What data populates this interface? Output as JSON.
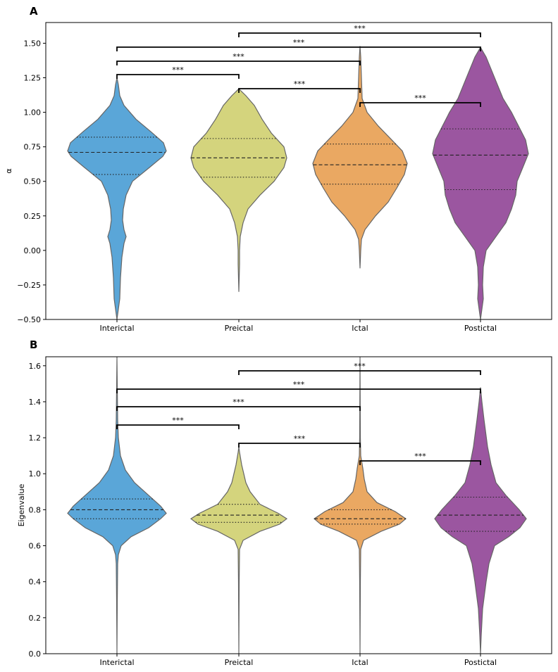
{
  "panels": [
    {
      "letter": "A",
      "ylabel": "α",
      "ylim": [
        -0.5,
        1.65
      ],
      "yticks": [
        "−0.50",
        "−0.25",
        "0.00",
        "0.25",
        "0.50",
        "0.75",
        "1.00",
        "1.25",
        "1.50"
      ],
      "ytick_values": [
        -0.5,
        -0.25,
        0.0,
        0.25,
        0.5,
        0.75,
        1.0,
        1.25,
        1.5
      ],
      "categories": [
        "Interictal",
        "Preictal",
        "Ictal",
        "Postictal"
      ],
      "brackets": [
        {
          "from": "Interictal",
          "to": "Preictal",
          "label": "***"
        },
        {
          "from": "Preictal",
          "to": "Ictal",
          "label": "***"
        },
        {
          "from": "Ictal",
          "to": "Postictal",
          "label": "***"
        },
        {
          "from": "Interictal",
          "to": "Ictal",
          "label": "***"
        },
        {
          "from": "Interictal",
          "to": "Postictal",
          "label": "***"
        },
        {
          "from": "Preictal",
          "to": "Postictal",
          "label": "***"
        }
      ]
    },
    {
      "letter": "B",
      "ylabel": "Eigenvalue",
      "ylim": [
        0.0,
        1.65
      ],
      "yticks": [
        "0.0",
        "0.2",
        "0.4",
        "0.6",
        "0.8",
        "1.0",
        "1.2",
        "1.4",
        "1.6"
      ],
      "ytick_values": [
        0.0,
        0.2,
        0.4,
        0.6,
        0.8,
        1.0,
        1.2,
        1.4,
        1.6
      ],
      "categories": [
        "Interictal",
        "Preictal",
        "Ictal",
        "Postictal"
      ],
      "brackets": [
        {
          "from": "Interictal",
          "to": "Preictal",
          "label": "***"
        },
        {
          "from": "Preictal",
          "to": "Ictal",
          "label": "***"
        },
        {
          "from": "Ictal",
          "to": "Postictal",
          "label": "***"
        },
        {
          "from": "Interictal",
          "to": "Ictal",
          "label": "***"
        },
        {
          "from": "Interictal",
          "to": "Postictal",
          "label": "***"
        },
        {
          "from": "Preictal",
          "to": "Postictal",
          "label": "***"
        }
      ]
    }
  ],
  "chart_data": [
    {
      "type": "violin",
      "title": "",
      "xlabel": "",
      "ylabel": "α",
      "ylim": [
        -0.5,
        1.65
      ],
      "categories": [
        "Interictal",
        "Preictal",
        "Ictal",
        "Postictal"
      ],
      "colors": [
        "#5aa6d8",
        "#d4d47d",
        "#eaa862",
        "#9b56a0"
      ],
      "series": [
        {
          "category": "Interictal",
          "q1": 0.55,
          "median": 0.71,
          "q3": 0.82,
          "profile": [
            [
              -0.5,
              0.0
            ],
            [
              -0.35,
              0.04
            ],
            [
              -0.2,
              0.05
            ],
            [
              -0.05,
              0.07
            ],
            [
              0.05,
              0.1
            ],
            [
              0.1,
              0.13
            ],
            [
              0.15,
              0.1
            ],
            [
              0.22,
              0.08
            ],
            [
              0.3,
              0.09
            ],
            [
              0.4,
              0.13
            ],
            [
              0.5,
              0.22
            ],
            [
              0.6,
              0.46
            ],
            [
              0.68,
              0.65
            ],
            [
              0.72,
              0.7
            ],
            [
              0.78,
              0.66
            ],
            [
              0.86,
              0.48
            ],
            [
              0.95,
              0.27
            ],
            [
              1.05,
              0.1
            ],
            [
              1.12,
              0.04
            ],
            [
              1.2,
              0.02
            ],
            [
              1.25,
              0.0
            ]
          ]
        },
        {
          "category": "Preictal",
          "q1": 0.53,
          "median": 0.67,
          "q3": 0.81,
          "profile": [
            [
              -0.3,
              0.0
            ],
            [
              -0.1,
              0.01
            ],
            [
              0.0,
              0.01
            ],
            [
              0.1,
              0.02
            ],
            [
              0.2,
              0.06
            ],
            [
              0.3,
              0.13
            ],
            [
              0.4,
              0.3
            ],
            [
              0.5,
              0.5
            ],
            [
              0.6,
              0.64
            ],
            [
              0.67,
              0.68
            ],
            [
              0.75,
              0.64
            ],
            [
              0.85,
              0.46
            ],
            [
              0.95,
              0.33
            ],
            [
              1.05,
              0.22
            ],
            [
              1.12,
              0.1
            ],
            [
              1.17,
              0.0
            ]
          ]
        },
        {
          "category": "Ictal",
          "q1": 0.48,
          "median": 0.62,
          "q3": 0.77,
          "profile": [
            [
              -0.13,
              0.0
            ],
            [
              0.0,
              0.01
            ],
            [
              0.08,
              0.02
            ],
            [
              0.15,
              0.07
            ],
            [
              0.25,
              0.22
            ],
            [
              0.35,
              0.4
            ],
            [
              0.45,
              0.52
            ],
            [
              0.55,
              0.63
            ],
            [
              0.63,
              0.67
            ],
            [
              0.72,
              0.6
            ],
            [
              0.8,
              0.45
            ],
            [
              0.9,
              0.26
            ],
            [
              1.0,
              0.1
            ],
            [
              1.1,
              0.03
            ],
            [
              1.25,
              0.02
            ],
            [
              1.4,
              0.01
            ],
            [
              1.48,
              0.0
            ]
          ]
        },
        {
          "category": "Postictal",
          "q1": 0.44,
          "median": 0.69,
          "q3": 0.88,
          "profile": [
            [
              -0.5,
              0.0
            ],
            [
              -0.35,
              0.04
            ],
            [
              -0.25,
              0.03
            ],
            [
              -0.12,
              0.04
            ],
            [
              0.0,
              0.08
            ],
            [
              0.1,
              0.22
            ],
            [
              0.2,
              0.36
            ],
            [
              0.3,
              0.44
            ],
            [
              0.4,
              0.5
            ],
            [
              0.5,
              0.52
            ],
            [
              0.6,
              0.6
            ],
            [
              0.7,
              0.68
            ],
            [
              0.8,
              0.64
            ],
            [
              0.9,
              0.54
            ],
            [
              1.0,
              0.44
            ],
            [
              1.1,
              0.32
            ],
            [
              1.2,
              0.24
            ],
            [
              1.3,
              0.16
            ],
            [
              1.4,
              0.08
            ],
            [
              1.47,
              0.0
            ]
          ]
        }
      ]
    },
    {
      "type": "violin",
      "title": "",
      "xlabel": "",
      "ylabel": "Eigenvalue",
      "ylim": [
        0.0,
        1.65
      ],
      "categories": [
        "Interictal",
        "Preictal",
        "Ictal",
        "Postictal"
      ],
      "colors": [
        "#5aa6d8",
        "#d4d47d",
        "#eaa862",
        "#9b56a0"
      ],
      "series": [
        {
          "category": "Interictal",
          "q1": 0.75,
          "median": 0.8,
          "q3": 0.86,
          "profile": [
            [
              0.0,
              0.0
            ],
            [
              0.3,
              0.005
            ],
            [
              0.5,
              0.01
            ],
            [
              0.55,
              0.02
            ],
            [
              0.6,
              0.06
            ],
            [
              0.65,
              0.2
            ],
            [
              0.7,
              0.45
            ],
            [
              0.75,
              0.62
            ],
            [
              0.78,
              0.7
            ],
            [
              0.82,
              0.62
            ],
            [
              0.88,
              0.45
            ],
            [
              0.95,
              0.25
            ],
            [
              1.02,
              0.12
            ],
            [
              1.1,
              0.05
            ],
            [
              1.2,
              0.02
            ],
            [
              1.3,
              0.01
            ],
            [
              1.65,
              0.0
            ]
          ]
        },
        {
          "category": "Preictal",
          "q1": 0.73,
          "median": 0.77,
          "q3": 0.83,
          "profile": [
            [
              0.0,
              0.0
            ],
            [
              0.4,
              0.005
            ],
            [
              0.58,
              0.01
            ],
            [
              0.63,
              0.06
            ],
            [
              0.68,
              0.3
            ],
            [
              0.72,
              0.58
            ],
            [
              0.75,
              0.68
            ],
            [
              0.78,
              0.56
            ],
            [
              0.83,
              0.3
            ],
            [
              0.9,
              0.16
            ],
            [
              0.95,
              0.1
            ],
            [
              1.05,
              0.04
            ],
            [
              1.12,
              0.01
            ],
            [
              1.15,
              0.0
            ]
          ]
        },
        {
          "category": "Ictal",
          "q1": 0.72,
          "median": 0.75,
          "q3": 0.8,
          "profile": [
            [
              0.0,
              0.0
            ],
            [
              0.4,
              0.005
            ],
            [
              0.58,
              0.01
            ],
            [
              0.63,
              0.05
            ],
            [
              0.68,
              0.3
            ],
            [
              0.72,
              0.56
            ],
            [
              0.75,
              0.65
            ],
            [
              0.79,
              0.5
            ],
            [
              0.84,
              0.24
            ],
            [
              0.9,
              0.1
            ],
            [
              0.97,
              0.06
            ],
            [
              1.03,
              0.04
            ],
            [
              1.1,
              0.01
            ],
            [
              1.2,
              0.005
            ],
            [
              1.65,
              0.0
            ]
          ]
        },
        {
          "category": "Postictal",
          "q1": 0.68,
          "median": 0.77,
          "q3": 0.87,
          "profile": [
            [
              0.0,
              0.0
            ],
            [
              0.1,
              0.01
            ],
            [
              0.25,
              0.03
            ],
            [
              0.4,
              0.08
            ],
            [
              0.5,
              0.12
            ],
            [
              0.6,
              0.2
            ],
            [
              0.65,
              0.4
            ],
            [
              0.7,
              0.56
            ],
            [
              0.75,
              0.65
            ],
            [
              0.8,
              0.55
            ],
            [
              0.88,
              0.36
            ],
            [
              0.95,
              0.22
            ],
            [
              1.05,
              0.15
            ],
            [
              1.15,
              0.1
            ],
            [
              1.3,
              0.05
            ],
            [
              1.4,
              0.02
            ],
            [
              1.48,
              0.0
            ]
          ]
        }
      ]
    }
  ]
}
